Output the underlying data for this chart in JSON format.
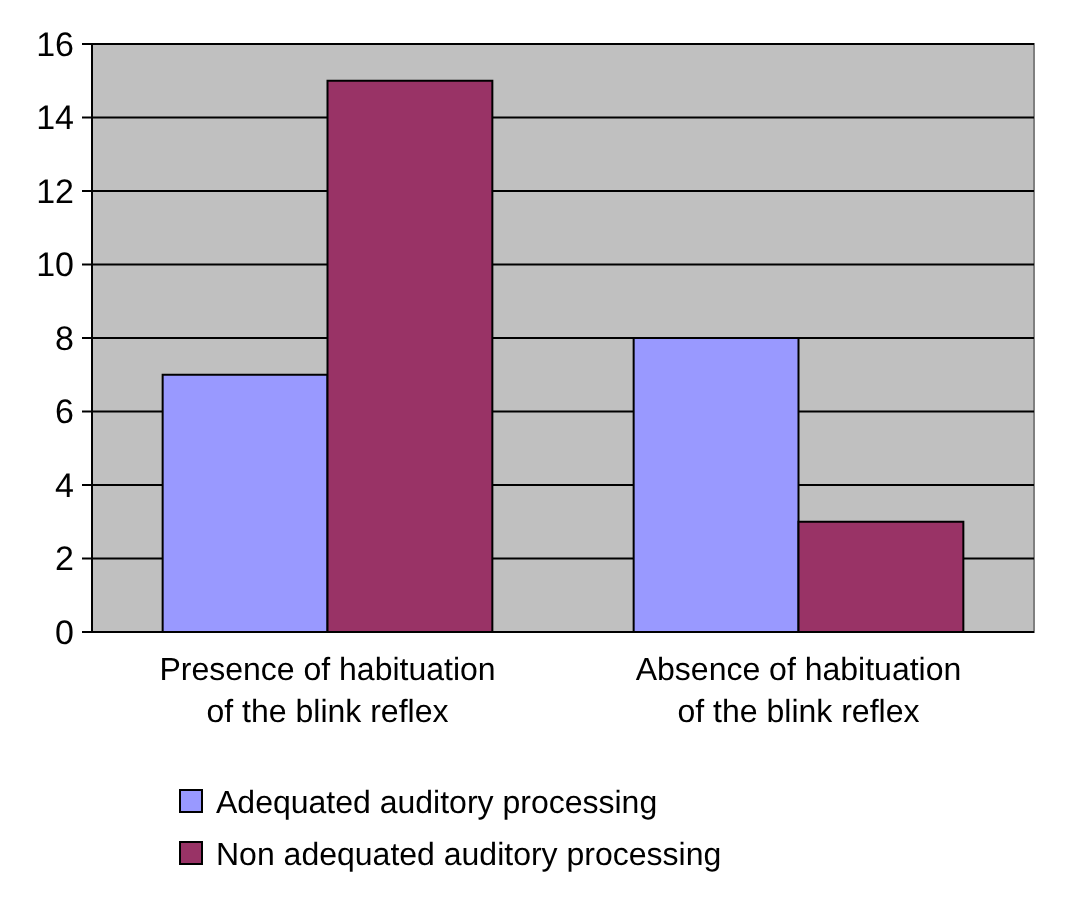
{
  "chart_data": {
    "type": "bar",
    "categories": [
      "Presence of habituation of the blink reflex",
      "Absence of habituation of the blink reflex"
    ],
    "series": [
      {
        "name": "Adequated auditory processing",
        "color": "#9999ff",
        "values": [
          7,
          8
        ]
      },
      {
        "name": "Non adequated auditory processing",
        "color": "#993366",
        "values": [
          15,
          3
        ]
      }
    ],
    "ylim": [
      0,
      16
    ],
    "yticks": [
      0,
      2,
      4,
      6,
      8,
      10,
      12,
      14,
      16
    ],
    "grid": "y",
    "legend": "bottom"
  }
}
